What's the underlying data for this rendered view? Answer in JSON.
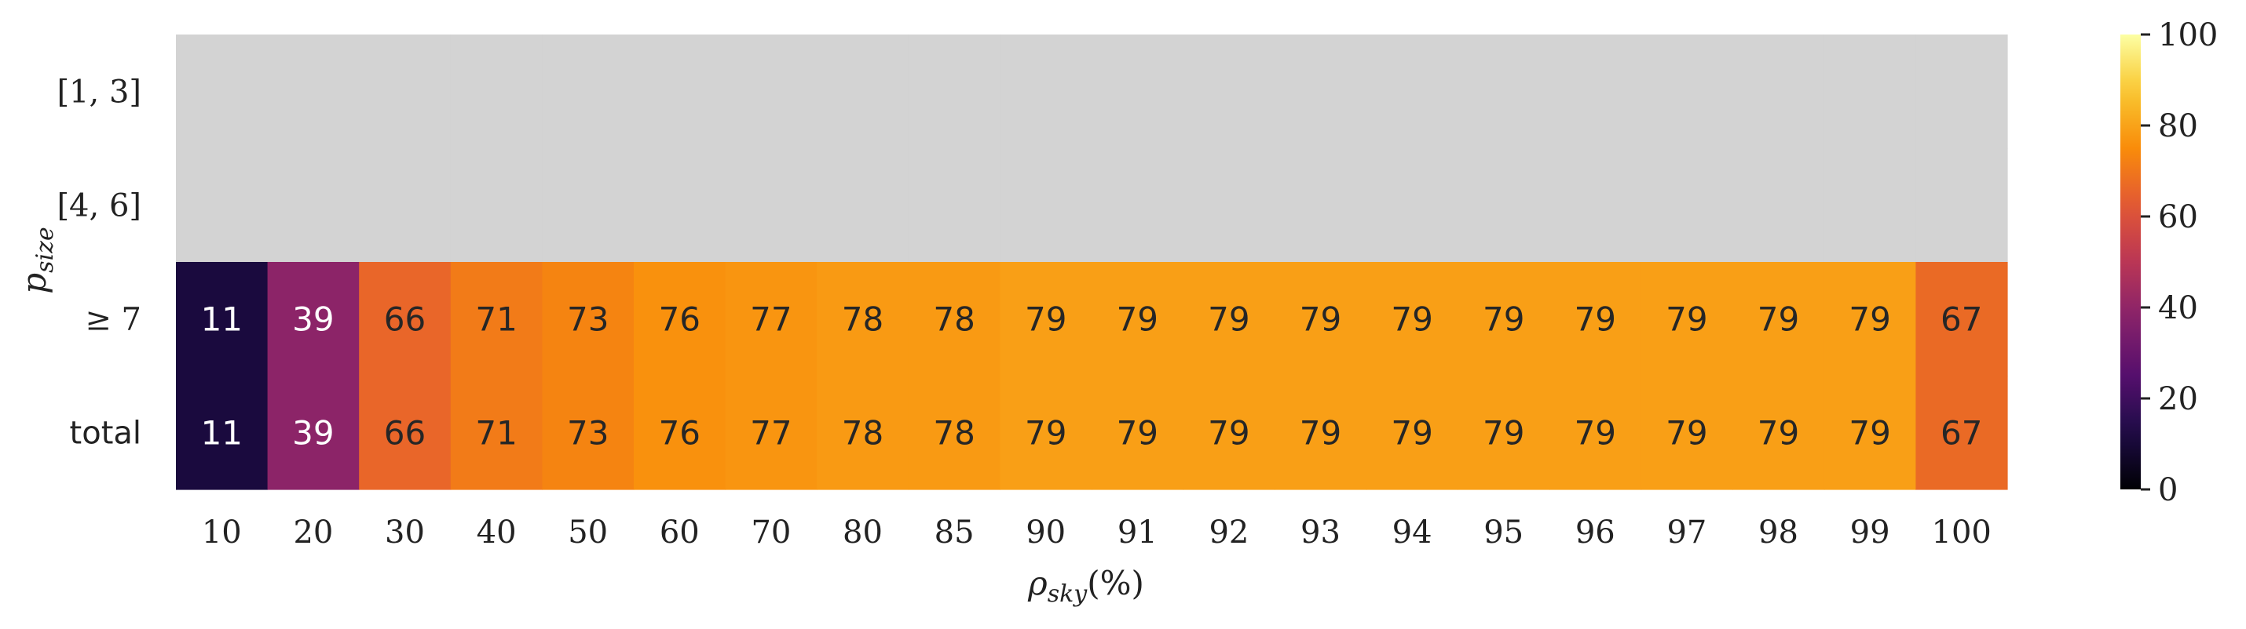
{
  "chart_data": {
    "type": "heatmap",
    "xlabel": "ρsky(%)",
    "xlabel_parts": {
      "base": "ρ",
      "sub": "sky",
      "suffix": "(%)"
    },
    "ylabel": "psize",
    "ylabel_parts": {
      "base": "p",
      "sub": "size"
    },
    "x_categories": [
      "10",
      "20",
      "30",
      "40",
      "50",
      "60",
      "70",
      "80",
      "85",
      "90",
      "91",
      "92",
      "93",
      "94",
      "95",
      "96",
      "97",
      "98",
      "99",
      "100"
    ],
    "y_categories": [
      "[1, 3]",
      "[4, 6]",
      "≥ 7",
      "total"
    ],
    "values": [
      [
        null,
        null,
        null,
        null,
        null,
        null,
        null,
        null,
        null,
        null,
        null,
        null,
        null,
        null,
        null,
        null,
        null,
        null,
        null,
        null
      ],
      [
        null,
        null,
        null,
        null,
        null,
        null,
        null,
        null,
        null,
        null,
        null,
        null,
        null,
        null,
        null,
        null,
        null,
        null,
        null,
        null
      ],
      [
        11,
        39,
        66,
        71,
        73,
        76,
        77,
        78,
        78,
        79,
        79,
        79,
        79,
        79,
        79,
        79,
        79,
        79,
        79,
        67
      ],
      [
        11,
        39,
        66,
        71,
        73,
        76,
        77,
        78,
        78,
        79,
        79,
        79,
        79,
        79,
        79,
        79,
        79,
        79,
        79,
        67
      ]
    ],
    "missing_color": "#d3d3d3",
    "colormap": "inferno",
    "colorbar": {
      "min": 0,
      "max": 100,
      "ticks": [
        "0",
        "20",
        "40",
        "60",
        "80",
        "100"
      ]
    },
    "annotations": true,
    "grid": false
  }
}
